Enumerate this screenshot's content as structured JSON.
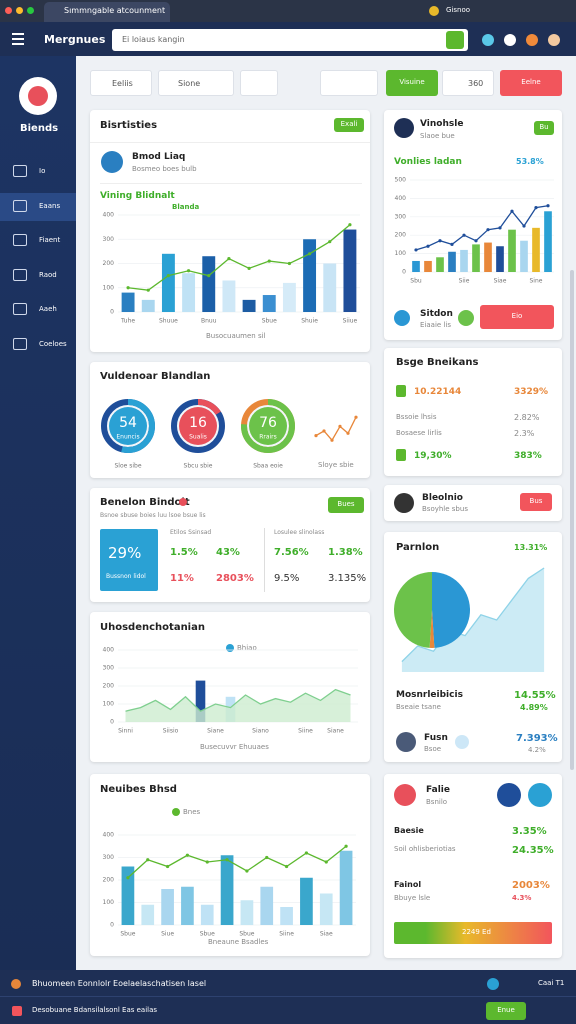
{
  "browser": {
    "tab": "Sımmngable atcounment",
    "user": "Gisnoo"
  },
  "app": {
    "brand": "Mergnues",
    "search": "Ei loiaus kangin"
  },
  "sidebar": {
    "brand": "Biends",
    "items": [
      "Io",
      "Eaans",
      "Fiaent",
      "Raod",
      "Aaeh",
      "Coeloes"
    ]
  },
  "toolbar": {
    "filter1": "Eeliis",
    "filter2": "Sione",
    "count": "360",
    "primary": "Visuine",
    "danger": "Eelne"
  },
  "cards": {
    "c1": {
      "title": "Bisrtisties",
      "button": "Exali",
      "sub": "Bmod Liaq",
      "sub2": "Bosmeo boes bulb",
      "section": "Vining Blidnalt",
      "legend": "Blanda",
      "footer": "Busocuaumen sil"
    },
    "c2": {
      "name": "Vinohsle",
      "sub": "Slaoe bue",
      "badge": "Bu",
      "heading": "Vonlies ladan",
      "value": "53.8%",
      "bottom": "Sitdon",
      "bottom_sub": "Eiaaie lis",
      "button": "Eio"
    },
    "c3": {
      "title": "Vuldenoar Blandlan",
      "area_caption": "Sloye sbie"
    },
    "c4": {
      "title": "Bsge Bneikans",
      "rows": [
        [
          "10.22144",
          "3329%"
        ],
        [
          "Bssoie lhsis",
          "2.82%"
        ],
        [
          "Bosaese lirlis",
          "2.3%"
        ],
        [
          "19,30%",
          "383%"
        ]
      ]
    },
    "c5": {
      "title": "Benelon Bindolt",
      "button": "Bues",
      "sub": "Bsnoe sbuse boies luu lsoe bsue lis",
      "big": "29%",
      "big_sub": "Bussnon lidol",
      "col1_head": "Etilos Ssinsad",
      "col1": [
        "1.5%",
        "43%",
        "11%",
        "2803%"
      ],
      "col2_head": "Losulee slinolass",
      "col2": [
        "7.56%",
        "1.38%",
        "9.5%",
        "3.135%"
      ]
    },
    "c6": {
      "name": "Bleolnio",
      "sub": "Bsoyhle sbus",
      "button": "Bus"
    },
    "c7": {
      "title": "Uhosdenchotanian",
      "legend": "Bhiao",
      "footer": "Busecuvvr Ehuuaes"
    },
    "c8": {
      "title": "Parnlon",
      "value": "13.31%",
      "stat1": "Mosnrleibicis",
      "stat1_value": "14.55%",
      "stat2": "Bseaie tsane",
      "stat2_value": "4.89%",
      "person": "Fusn",
      "person_sub": "Bsoe",
      "person_value": "7.393%",
      "person_sub_value": "4.2%"
    },
    "c9": {
      "title": "Neuibes Bhsd",
      "legend": "Bnes",
      "footer": "Bneaune Bsadles"
    },
    "c10": {
      "title": "Falie",
      "sub": "Bsnilo",
      "rows": [
        [
          "Baesie",
          "3.35%"
        ],
        [
          "Soil ohlisberiotias",
          "24.35%"
        ],
        [
          "Fainol",
          "2003%"
        ],
        [
          "Bbuye lsle",
          "4.3%"
        ]
      ],
      "bar_label": "2249 Ed"
    }
  },
  "footer": {
    "line1": "Bhuomeen Eonnlolr Eoelaelaschatisen lasel",
    "line2": "Desobuane Bdansilalsonl Eas eailas",
    "right": "Caai T1",
    "button": "Enue"
  },
  "charts": [
    {
      "type": "bar-line",
      "ylim": [
        0,
        400
      ],
      "yticks": [
        0,
        100,
        200,
        300,
        400
      ],
      "categories": [
        "Tuhe",
        null,
        "Shuue",
        null,
        "Bnuu",
        null,
        null,
        "Sbue",
        null,
        "Shuie",
        null,
        "Siiue"
      ],
      "bars": {
        "values": [
          80,
          50,
          240,
          160,
          230,
          130,
          50,
          70,
          120,
          300,
          200,
          340
        ],
        "colors": [
          "#2a7fc1",
          "#a9d6ef",
          "#2aa1d4",
          "#bfe2f5",
          "#1b5fa8",
          "#cfe8f7",
          "#1d5ca3",
          "#3b8fd1",
          "#d5ebf8",
          "#1c6cb5",
          "#c8e4f5",
          "#1f4e9a"
        ]
      },
      "line": {
        "values": [
          100,
          90,
          150,
          170,
          150,
          220,
          180,
          210,
          200,
          240,
          290,
          360
        ],
        "color": "#5cb82e"
      }
    },
    {
      "type": "bar-line",
      "ylim": [
        0,
        500
      ],
      "yticks": [
        0,
        100,
        200,
        300,
        400,
        500
      ],
      "categories": [
        "Sbu",
        null,
        null,
        null,
        "Siie",
        null,
        null,
        "Siae",
        null,
        null,
        "Sine",
        null
      ],
      "bars": {
        "values": [
          60,
          60,
          80,
          110,
          120,
          150,
          160,
          140,
          230,
          170,
          240,
          330
        ],
        "colors": [
          "#2a97d4",
          "#e8873a",
          "#6cc24a",
          "#2a7fc1",
          "#a9d6ef",
          "#6cc24a",
          "#e8873a",
          "#1f4e9a",
          "#6cc24a",
          "#a9d6ef",
          "#e8b92a",
          "#2aa1d4"
        ]
      },
      "line": {
        "values": [
          120,
          140,
          170,
          150,
          200,
          170,
          230,
          240,
          330,
          250,
          350,
          360
        ],
        "color": "#1f4e9a"
      }
    },
    {
      "type": "gauge",
      "max": 100,
      "values": [
        54,
        16,
        76
      ],
      "labels": [
        "Enuncis",
        "Sualis",
        "Rrairs"
      ],
      "captions": [
        "Sloe sibe",
        "Sbcu sbie",
        "Sbaa eoie"
      ],
      "colors": [
        "#2aa1d4",
        "#e8505b",
        "#6cc24a"
      ],
      "accents": [
        "#1f4e9a",
        "#1f4e9a",
        "#e8873a"
      ]
    },
    {
      "type": "area",
      "ylim": [
        0,
        100
      ],
      "line": {
        "values": [
          40,
          50,
          30,
          60,
          45,
          80
        ],
        "color": "#e8873a"
      }
    },
    {
      "type": "bar-line",
      "ylim": [
        0,
        400
      ],
      "yticks": [
        0,
        100,
        200,
        300,
        400
      ],
      "categories": [
        "Sinni",
        null,
        null,
        "Siisio",
        null,
        null,
        "Siane",
        null,
        null,
        "Siano",
        null,
        null,
        "Siine",
        null,
        "Siane",
        null
      ],
      "bars": {
        "values": [
          null,
          null,
          null,
          null,
          null,
          230,
          null,
          140,
          null,
          null,
          null,
          null,
          null,
          null,
          null,
          null
        ],
        "colors": [
          "#2a7fc1",
          "#2a7fc1",
          "#2a7fc1",
          "#2a7fc1",
          "#2a7fc1",
          "#1f4e9a",
          "#2a7fc1",
          "#bfe2f5",
          "#2a7fc1",
          "#2a7fc1",
          "#2a7fc1",
          "#2a7fc1",
          "#2a7fc1",
          "#2a7fc1",
          "#2a7fc1",
          "#2a7fc1"
        ]
      },
      "line": {
        "values": [
          60,
          80,
          120,
          70,
          140,
          60,
          100,
          80,
          150,
          100,
          130,
          110,
          160,
          120,
          180,
          150
        ],
        "color": "#7fcf8f",
        "fill": "#cdeccf"
      }
    },
    {
      "type": "pie",
      "values": [
        49,
        2,
        49
      ],
      "colors": [
        "#2a97d4",
        "#e8873a",
        "#6cc24a"
      ]
    },
    {
      "type": "area",
      "ylim": [
        0,
        100
      ],
      "line": {
        "values": [
          10,
          25,
          20,
          40,
          35,
          55,
          50,
          70,
          90,
          100
        ],
        "color": "#8fd3e8",
        "fill": "#bfe6f2"
      }
    },
    {
      "type": "bar-line",
      "ylim": [
        0,
        400
      ],
      "yticks": [
        0,
        100,
        200,
        300,
        400
      ],
      "categories": [
        "Sbue",
        null,
        "Siue",
        null,
        "Sbue",
        null,
        "Sbue",
        null,
        "Siine",
        null,
        "Siae",
        null
      ],
      "bars": {
        "values": [
          260,
          90,
          160,
          170,
          90,
          310,
          110,
          170,
          80,
          210,
          140,
          330
        ],
        "colors": [
          "#3aa7cc",
          "#c6e7f4",
          "#a9d6ef",
          "#7fc6e4",
          "#bfe2f5",
          "#3aa7cc",
          "#c6e7f4",
          "#a9d6ef",
          "#bfe2f5",
          "#3aa7cc",
          "#c6e7f4",
          "#7fc6e4"
        ]
      },
      "line": {
        "values": [
          210,
          290,
          260,
          310,
          280,
          290,
          240,
          300,
          260,
          320,
          280,
          350
        ],
        "color": "#5cb82e"
      }
    }
  ]
}
